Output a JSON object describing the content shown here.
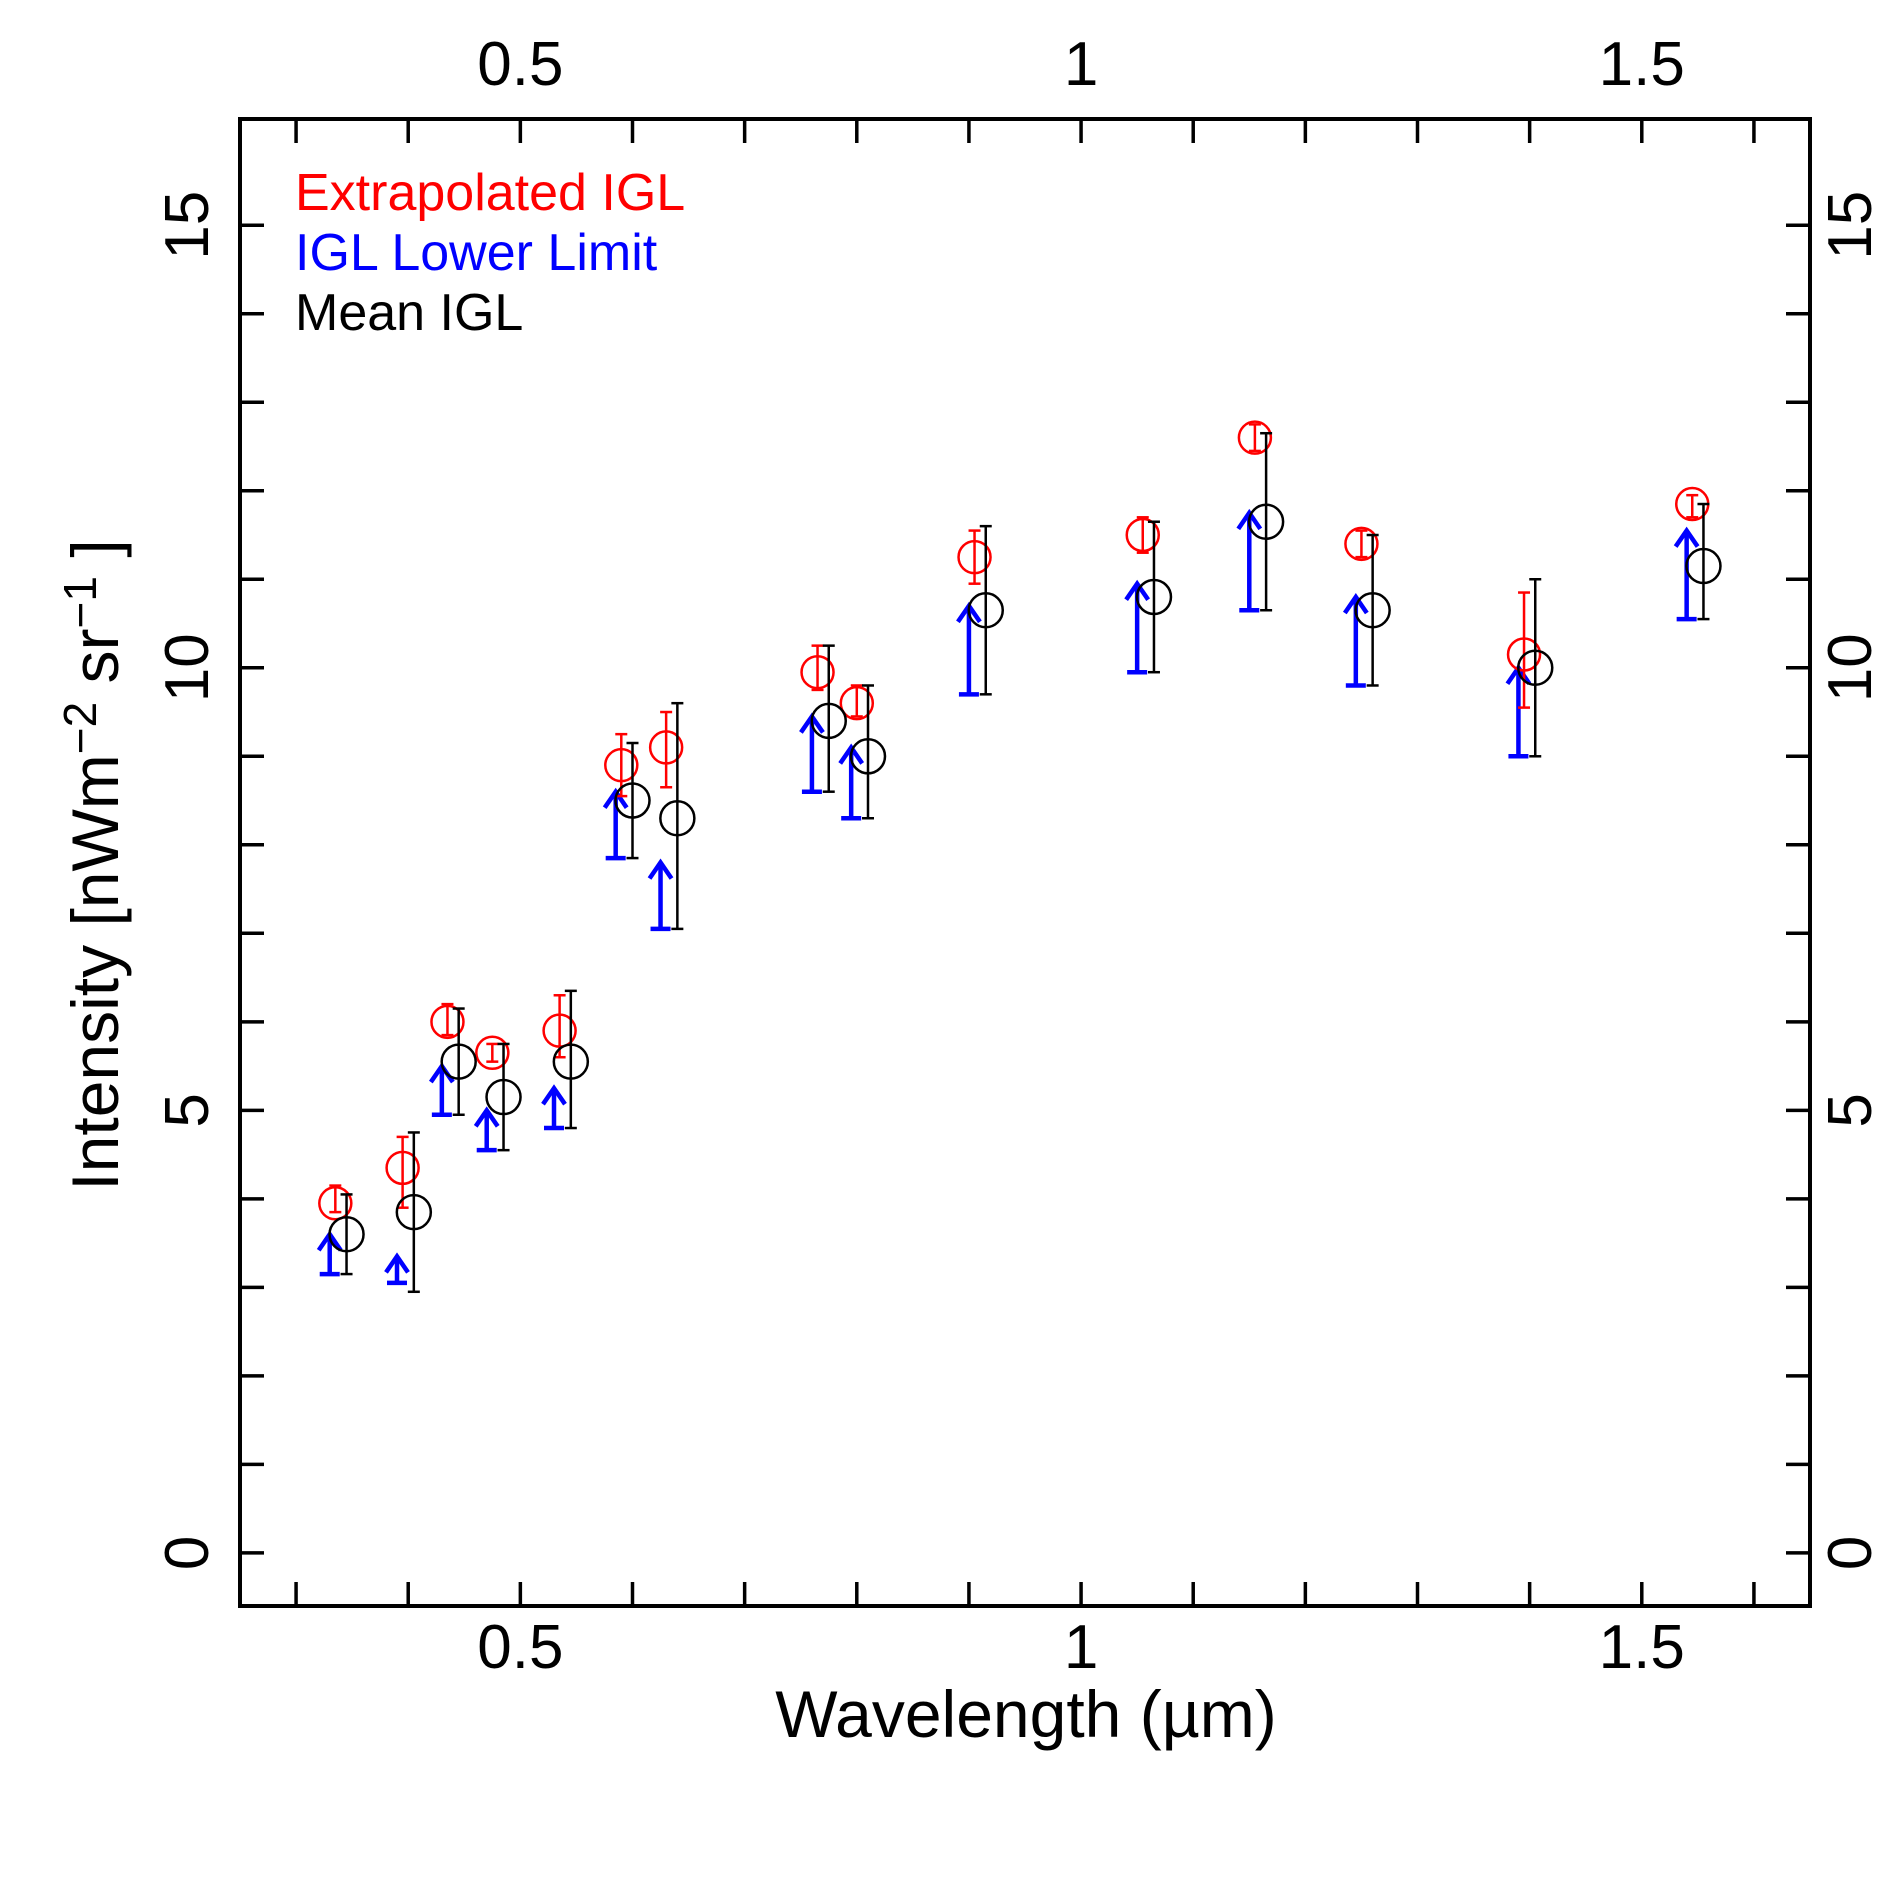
{
  "chart_data": {
    "type": "scatter",
    "title": "",
    "xlabel": "Wavelength (µm)",
    "ylabel_main": "Intensity [nWm",
    "ylabel_exp1": "−2",
    "ylabel_mid": " sr",
    "ylabel_exp2": "−1",
    "ylabel_end": " ]",
    "xlim": [
      0.25,
      1.65
    ],
    "ylim": [
      -0.6,
      16.2
    ],
    "x_ticks": [
      {
        "value": 0.5,
        "label": "0.5"
      },
      {
        "value": 1.0,
        "label": "1"
      },
      {
        "value": 1.5,
        "label": "1.5"
      }
    ],
    "x_minor_ticks": [
      0.3,
      0.4,
      0.6,
      0.7,
      0.8,
      0.9,
      1.1,
      1.2,
      1.3,
      1.4,
      1.6
    ],
    "y_ticks": [
      {
        "value": 0,
        "label": "0"
      },
      {
        "value": 5,
        "label": "5"
      },
      {
        "value": 10,
        "label": "10"
      },
      {
        "value": 15,
        "label": "15"
      }
    ],
    "y_minor_ticks": [
      1,
      2,
      3,
      4,
      6,
      7,
      8,
      9,
      11,
      12,
      13,
      14
    ],
    "legend": {
      "position": "top-left",
      "entries": [
        {
          "label": "Extrapolated IGL",
          "color": "#ff0000"
        },
        {
          "label": "IGL Lower Limit",
          "color": "#0000ff"
        },
        {
          "label": "Mean IGL",
          "color": "#000000"
        }
      ]
    },
    "series": [
      {
        "name": "Extrapolated IGL",
        "color": "#ff0000",
        "marker": "circle",
        "points": [
          {
            "x": 0.335,
            "y": 3.95,
            "lo": 3.85,
            "hi": 4.15
          },
          {
            "x": 0.395,
            "y": 4.35,
            "lo": 3.9,
            "hi": 4.7
          },
          {
            "x": 0.435,
            "y": 6.0,
            "lo": 5.85,
            "hi": 6.2
          },
          {
            "x": 0.475,
            "y": 5.65,
            "lo": 5.55,
            "hi": 5.75
          },
          {
            "x": 0.535,
            "y": 5.9,
            "lo": 5.6,
            "hi": 6.3
          },
          {
            "x": 0.59,
            "y": 8.9,
            "lo": 8.55,
            "hi": 9.25
          },
          {
            "x": 0.63,
            "y": 9.1,
            "lo": 8.65,
            "hi": 9.5
          },
          {
            "x": 0.765,
            "y": 9.95,
            "lo": 9.75,
            "hi": 10.25
          },
          {
            "x": 0.8,
            "y": 9.6,
            "lo": 9.45,
            "hi": 9.8
          },
          {
            "x": 0.905,
            "y": 11.25,
            "lo": 10.95,
            "hi": 11.55
          },
          {
            "x": 1.055,
            "y": 11.5,
            "lo": 11.3,
            "hi": 11.7
          },
          {
            "x": 1.155,
            "y": 12.6,
            "lo": 12.45,
            "hi": 12.75
          },
          {
            "x": 1.25,
            "y": 11.4,
            "lo": 11.25,
            "hi": 11.55
          },
          {
            "x": 1.395,
            "y": 10.15,
            "lo": 9.55,
            "hi": 10.85
          },
          {
            "x": 1.545,
            "y": 11.85,
            "lo": 11.7,
            "hi": 11.95
          }
        ]
      },
      {
        "name": "IGL Lower Limit",
        "color": "#0000ff",
        "marker": "arrow",
        "points": [
          {
            "x": 0.33,
            "y": 3.15,
            "hi": 3.6
          },
          {
            "x": 0.39,
            "y": 3.05,
            "hi": 3.35
          },
          {
            "x": 0.43,
            "y": 4.95,
            "hi": 5.5
          },
          {
            "x": 0.47,
            "y": 4.55,
            "hi": 5.0
          },
          {
            "x": 0.53,
            "y": 4.8,
            "hi": 5.25
          },
          {
            "x": 0.585,
            "y": 7.85,
            "hi": 8.6
          },
          {
            "x": 0.625,
            "y": 7.05,
            "hi": 7.8
          },
          {
            "x": 0.76,
            "y": 8.6,
            "hi": 9.45
          },
          {
            "x": 0.795,
            "y": 8.3,
            "hi": 9.1
          },
          {
            "x": 0.9,
            "y": 9.7,
            "hi": 10.7
          },
          {
            "x": 1.05,
            "y": 9.95,
            "hi": 10.95
          },
          {
            "x": 1.15,
            "y": 10.65,
            "hi": 11.75
          },
          {
            "x": 1.245,
            "y": 9.8,
            "hi": 10.8
          },
          {
            "x": 1.39,
            "y": 9.0,
            "hi": 10.0
          },
          {
            "x": 1.54,
            "y": 10.55,
            "hi": 11.55
          }
        ]
      },
      {
        "name": "Mean IGL",
        "color": "#000000",
        "marker": "circle",
        "points": [
          {
            "x": 0.345,
            "y": 3.6,
            "lo": 3.15,
            "hi": 4.05
          },
          {
            "x": 0.405,
            "y": 3.85,
            "lo": 2.95,
            "hi": 4.75
          },
          {
            "x": 0.445,
            "y": 5.55,
            "lo": 4.95,
            "hi": 6.15
          },
          {
            "x": 0.485,
            "y": 5.15,
            "lo": 4.55,
            "hi": 5.75
          },
          {
            "x": 0.545,
            "y": 5.55,
            "lo": 4.8,
            "hi": 6.35
          },
          {
            "x": 0.6,
            "y": 8.5,
            "lo": 7.85,
            "hi": 9.15
          },
          {
            "x": 0.64,
            "y": 8.3,
            "lo": 7.05,
            "hi": 9.6
          },
          {
            "x": 0.775,
            "y": 9.4,
            "lo": 8.6,
            "hi": 10.25
          },
          {
            "x": 0.81,
            "y": 9.0,
            "lo": 8.3,
            "hi": 9.8
          },
          {
            "x": 0.915,
            "y": 10.65,
            "lo": 9.7,
            "hi": 11.6
          },
          {
            "x": 1.065,
            "y": 10.8,
            "lo": 9.95,
            "hi": 11.65
          },
          {
            "x": 1.165,
            "y": 11.65,
            "lo": 10.65,
            "hi": 12.65
          },
          {
            "x": 1.26,
            "y": 10.65,
            "lo": 9.8,
            "hi": 11.5
          },
          {
            "x": 1.405,
            "y": 10.0,
            "lo": 9.0,
            "hi": 11.0
          },
          {
            "x": 1.555,
            "y": 11.15,
            "lo": 10.55,
            "hi": 11.85
          }
        ]
      }
    ]
  }
}
